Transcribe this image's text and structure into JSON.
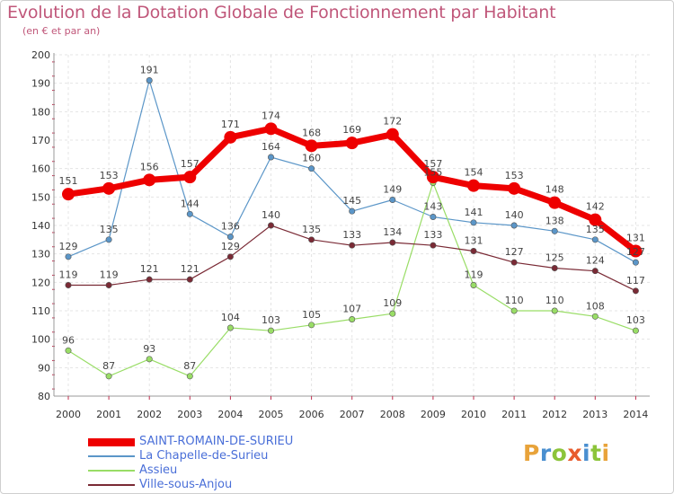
{
  "title": "Evolution de la Dotation Globale de Fonctionnement par Habitant",
  "subtitle": "(en € et par an)",
  "logo": {
    "letters": [
      {
        "ch": "P",
        "color": "#e8a33a"
      },
      {
        "ch": "r",
        "color": "#4a8fd0"
      },
      {
        "ch": "o",
        "color": "#8cc43a"
      },
      {
        "ch": "x",
        "color": "#e85c2e"
      },
      {
        "ch": "i",
        "color": "#4a8fd0"
      },
      {
        "ch": "t",
        "color": "#8cc43a"
      },
      {
        "ch": "i",
        "color": "#e8a33a"
      }
    ]
  },
  "chart_data": {
    "type": "line",
    "title": "Evolution de la Dotation Globale de Fonctionnement par Habitant",
    "subtitle": "(en € et par an)",
    "x": [
      "2000",
      "2001",
      "2002",
      "2003",
      "2004",
      "2005",
      "2006",
      "2007",
      "2008",
      "2009",
      "2010",
      "2011",
      "2012",
      "2013",
      "2014"
    ],
    "ylim": [
      80,
      200
    ],
    "yticks": [
      "80",
      "90",
      "100",
      "110",
      "120",
      "130",
      "140",
      "150",
      "160",
      "170",
      "180",
      "190",
      "200"
    ],
    "grid": true,
    "legend_position": "bottom-left",
    "series": [
      {
        "name": "SAINT-ROMAIN-DE-SURIEU",
        "color": "#ee0000",
        "width": 7,
        "marker": 7,
        "labels_above": true,
        "values": [
          151,
          153,
          156,
          157,
          171,
          174,
          168,
          169,
          172,
          157,
          154,
          153,
          148,
          142,
          131
        ]
      },
      {
        "name": "La Chapelle-de-Surieu",
        "color": "#5b96c8",
        "width": 1.2,
        "marker": 3.2,
        "labels_above": true,
        "values": [
          129,
          135,
          191,
          144,
          136,
          164,
          160,
          145,
          149,
          143,
          141,
          140,
          138,
          135,
          127
        ]
      },
      {
        "name": "Assieu",
        "color": "#99dd66",
        "width": 1.2,
        "marker": 3.2,
        "labels_above": true,
        "values": [
          96,
          87,
          93,
          87,
          104,
          103,
          105,
          107,
          109,
          155,
          119,
          110,
          110,
          108,
          103
        ]
      },
      {
        "name": "Ville-sous-Anjou",
        "color": "#7a2a35",
        "width": 1.2,
        "marker": 3.2,
        "labels_above": true,
        "values": [
          119,
          119,
          121,
          121,
          129,
          140,
          135,
          133,
          134,
          133,
          131,
          127,
          125,
          124,
          117
        ]
      }
    ]
  }
}
